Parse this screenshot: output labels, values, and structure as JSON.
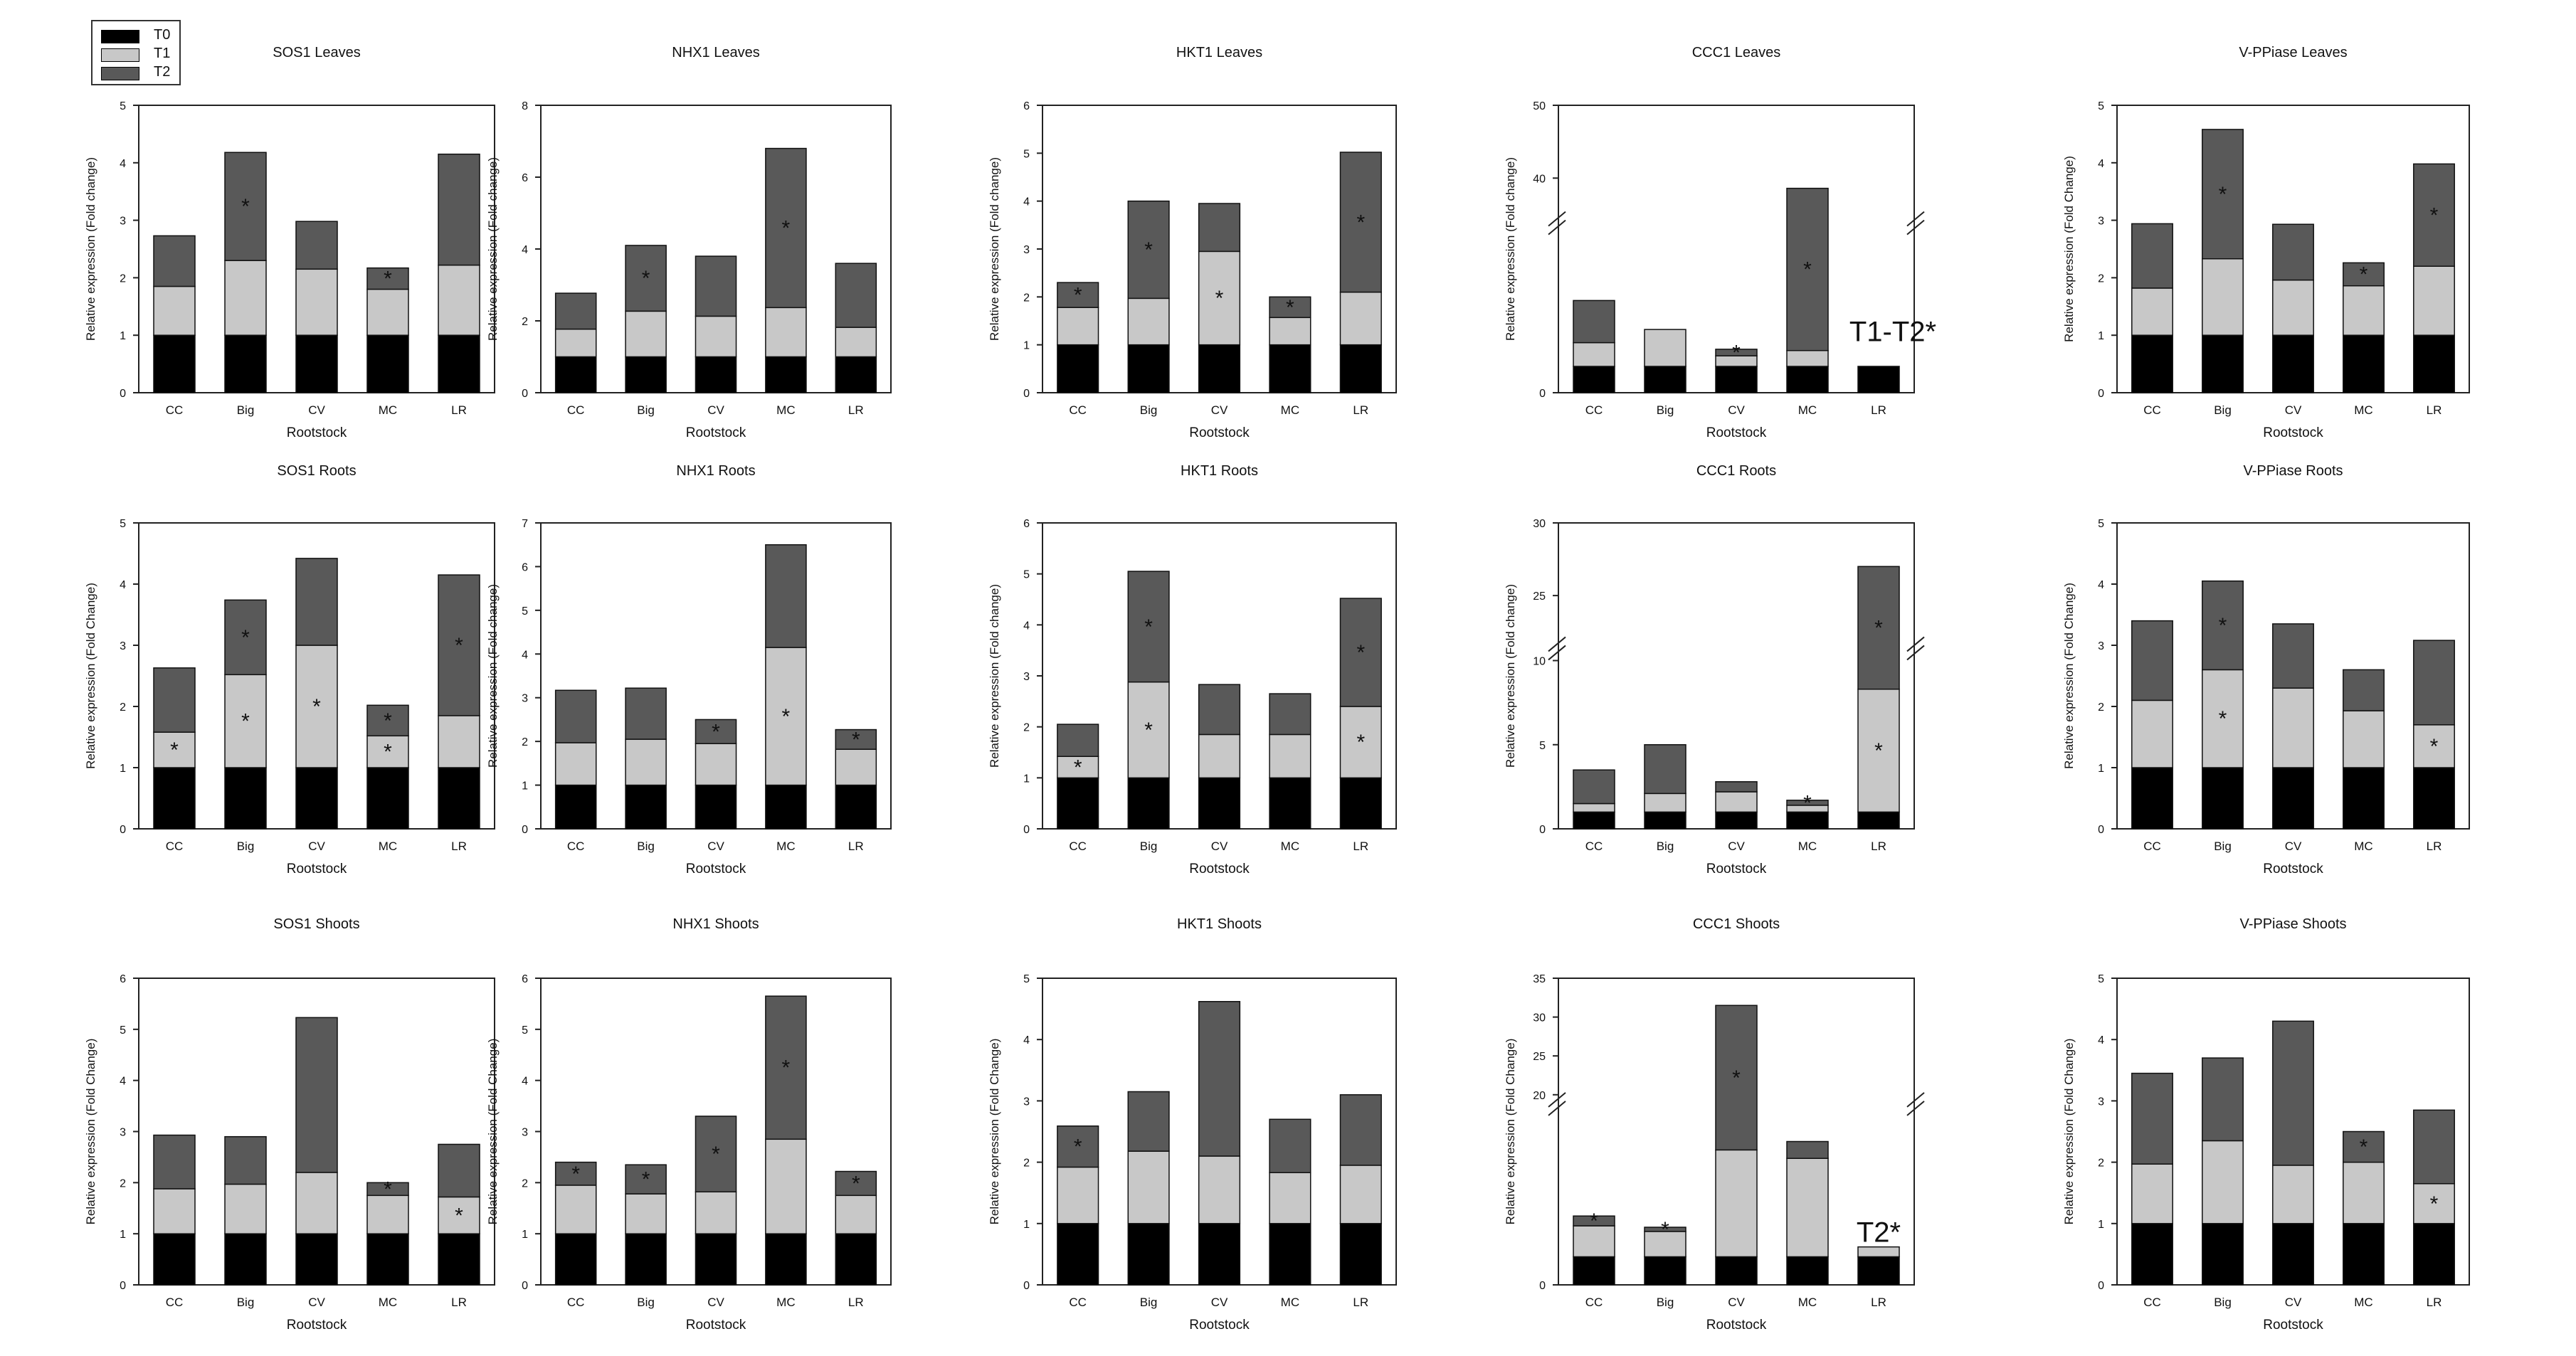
{
  "legend": {
    "t0": {
      "label": "T0",
      "color": "#000000"
    },
    "t1": {
      "label": "T1",
      "color": "#c8c8c8"
    },
    "t2": {
      "label": "T2",
      "color": "#595959"
    }
  },
  "chart_data": [
    {
      "type": "bar",
      "stacked": true,
      "title": "SOS1 Leaves",
      "xlabel": "Rootstock",
      "ylabel": "Relative expression (Fold change)",
      "categories": [
        "CC",
        "Big",
        "CV",
        "MC",
        "LR"
      ],
      "ylim": [
        0,
        5
      ],
      "yticks": [
        0,
        1,
        2,
        3,
        4,
        5
      ],
      "series": [
        {
          "name": "T0",
          "values": [
            1,
            1,
            1,
            1,
            1
          ]
        },
        {
          "name": "T1",
          "values": [
            0.85,
            1.3,
            1.15,
            0.8,
            1.22
          ]
        },
        {
          "name": "T2",
          "values": [
            0.88,
            1.88,
            0.83,
            0.37,
            1.93
          ]
        }
      ],
      "stars": [
        {
          "category": "Big",
          "series": "T2"
        },
        {
          "category": "MC",
          "series": "T2"
        }
      ]
    },
    {
      "type": "bar",
      "stacked": true,
      "title": "NHX1 Leaves",
      "xlabel": "Rootstock",
      "ylabel": "Relative expression (Fold change)",
      "categories": [
        "CC",
        "Big",
        "CV",
        "MC",
        "LR"
      ],
      "ylim": [
        0,
        8
      ],
      "yticks": [
        0,
        2,
        4,
        6,
        8
      ],
      "series": [
        {
          "name": "T0",
          "values": [
            1,
            1,
            1,
            1,
            1
          ]
        },
        {
          "name": "T1",
          "values": [
            0.77,
            1.27,
            1.13,
            1.37,
            0.82
          ]
        },
        {
          "name": "T2",
          "values": [
            1.0,
            1.83,
            1.67,
            4.43,
            1.78
          ]
        }
      ],
      "stars": [
        {
          "category": "Big",
          "series": "T2"
        },
        {
          "category": "MC",
          "series": "T2"
        }
      ]
    },
    {
      "type": "bar",
      "stacked": true,
      "title": "HKT1 Leaves",
      "xlabel": "Rootstock",
      "ylabel": "Relative expression (Fold change)",
      "categories": [
        "CC",
        "Big",
        "CV",
        "MC",
        "LR"
      ],
      "ylim": [
        0,
        6
      ],
      "yticks": [
        0,
        1,
        2,
        3,
        4,
        5,
        6
      ],
      "series": [
        {
          "name": "T0",
          "values": [
            1,
            1,
            1,
            1,
            1
          ]
        },
        {
          "name": "T1",
          "values": [
            0.78,
            0.97,
            1.95,
            0.57,
            1.1
          ]
        },
        {
          "name": "T2",
          "values": [
            0.52,
            2.03,
            1.0,
            0.43,
            2.92
          ]
        }
      ],
      "stars": [
        {
          "category": "CC",
          "series": "T2"
        },
        {
          "category": "Big",
          "series": "T2"
        },
        {
          "category": "CV",
          "series": "T1"
        },
        {
          "category": "MC",
          "series": "T2"
        },
        {
          "category": "LR",
          "series": "T2"
        }
      ]
    },
    {
      "type": "bar",
      "stacked": true,
      "broken_axis": true,
      "title": "CCC1 Leaves",
      "xlabel": "Rootstock",
      "ylabel": "Relative expression (Fold change)",
      "categories": [
        "CC",
        "Big",
        "CV",
        "MC",
        "LR"
      ],
      "ylim": [
        0,
        50
      ],
      "yticks": [
        0,
        40,
        50
      ],
      "series": [
        {
          "name": "T0",
          "values": [
            1,
            1,
            1,
            1,
            1
          ]
        },
        {
          "name": "T1",
          "values": [
            0.9,
            1.4,
            0.4,
            0.6,
            null
          ]
        },
        {
          "name": "T2",
          "values": [
            1.6,
            null,
            0.25,
            37.0,
            null
          ]
        }
      ],
      "stars": [
        {
          "category": "CV",
          "series": "T2"
        },
        {
          "category": "MC",
          "series": "T2"
        }
      ],
      "annotation": "T1-T2*"
    },
    {
      "type": "bar",
      "stacked": true,
      "title": "V-PPiase Leaves",
      "xlabel": "Rootstock",
      "ylabel": "Relative expression (Fold Change)",
      "categories": [
        "CC",
        "Big",
        "CV",
        "MC",
        "LR"
      ],
      "ylim": [
        0,
        5
      ],
      "yticks": [
        0,
        1,
        2,
        3,
        4,
        5
      ],
      "series": [
        {
          "name": "T0",
          "values": [
            1,
            1,
            1,
            1,
            1
          ]
        },
        {
          "name": "T1",
          "values": [
            0.82,
            1.33,
            0.96,
            0.86,
            1.2
          ]
        },
        {
          "name": "T2",
          "values": [
            1.12,
            2.25,
            0.97,
            0.4,
            1.78
          ]
        }
      ],
      "stars": [
        {
          "category": "Big",
          "series": "T2"
        },
        {
          "category": "MC",
          "series": "T2"
        },
        {
          "category": "LR",
          "series": "T2"
        }
      ]
    },
    {
      "type": "bar",
      "stacked": true,
      "title": "SOS1 Roots",
      "xlabel": "Rootstock",
      "ylabel": "Relative expression (Fold Change)",
      "categories": [
        "CC",
        "Big",
        "CV",
        "MC",
        "LR"
      ],
      "ylim": [
        0,
        5
      ],
      "yticks": [
        0,
        1,
        2,
        3,
        4,
        5
      ],
      "series": [
        {
          "name": "T0",
          "values": [
            1,
            1,
            1,
            1,
            1
          ]
        },
        {
          "name": "T1",
          "values": [
            0.58,
            1.52,
            2.0,
            0.52,
            0.85
          ]
        },
        {
          "name": "T2",
          "values": [
            1.05,
            1.22,
            1.42,
            0.5,
            2.3
          ]
        }
      ],
      "stars": [
        {
          "category": "CC",
          "series": "T1"
        },
        {
          "category": "Big",
          "series": "T1"
        },
        {
          "category": "Big",
          "series": "T2"
        },
        {
          "category": "CV",
          "series": "T1"
        },
        {
          "category": "MC",
          "series": "T1"
        },
        {
          "category": "MC",
          "series": "T2"
        },
        {
          "category": "LR",
          "series": "T2"
        }
      ]
    },
    {
      "type": "bar",
      "stacked": true,
      "title": "NHX1 Roots",
      "xlabel": "Rootstock",
      "ylabel": "Relative expression (Fold change)",
      "categories": [
        "CC",
        "Big",
        "CV",
        "MC",
        "LR"
      ],
      "ylim": [
        0,
        7
      ],
      "yticks": [
        0,
        1,
        2,
        3,
        4,
        5,
        6,
        7
      ],
      "series": [
        {
          "name": "T0",
          "values": [
            1,
            1,
            1,
            1,
            1
          ]
        },
        {
          "name": "T1",
          "values": [
            0.97,
            1.05,
            0.95,
            3.15,
            0.82
          ]
        },
        {
          "name": "T2",
          "values": [
            1.2,
            1.17,
            0.55,
            2.35,
            0.45
          ]
        }
      ],
      "stars": [
        {
          "category": "CV",
          "series": "T2"
        },
        {
          "category": "MC",
          "series": "T1"
        },
        {
          "category": "LR",
          "series": "T2"
        }
      ]
    },
    {
      "type": "bar",
      "stacked": true,
      "title": "HKT1 Roots",
      "xlabel": "Rootstock",
      "ylabel": "Relative expression (Fold change)",
      "categories": [
        "CC",
        "Big",
        "CV",
        "MC",
        "LR"
      ],
      "ylim": [
        0,
        6
      ],
      "yticks": [
        0,
        1,
        2,
        3,
        4,
        5,
        6
      ],
      "series": [
        {
          "name": "T0",
          "values": [
            1,
            1,
            1,
            1,
            1
          ]
        },
        {
          "name": "T1",
          "values": [
            0.42,
            1.88,
            0.85,
            0.85,
            1.4
          ]
        },
        {
          "name": "T2",
          "values": [
            0.63,
            2.17,
            0.98,
            0.8,
            2.12
          ]
        }
      ],
      "stars": [
        {
          "category": "CC",
          "series": "T1"
        },
        {
          "category": "Big",
          "series": "T1"
        },
        {
          "category": "Big",
          "series": "T2"
        },
        {
          "category": "LR",
          "series": "T1"
        },
        {
          "category": "LR",
          "series": "T2"
        }
      ]
    },
    {
      "type": "bar",
      "stacked": true,
      "broken_axis": true,
      "title": "CCC1 Roots",
      "xlabel": "Rootstock",
      "ylabel": "Relative expression (Fold change)",
      "categories": [
        "CC",
        "Big",
        "CV",
        "MC",
        "LR"
      ],
      "ylim": [
        0,
        30
      ],
      "yticks": [
        0,
        5,
        10,
        25,
        30
      ],
      "series": [
        {
          "name": "T0",
          "values": [
            1,
            1,
            1,
            1,
            1
          ]
        },
        {
          "name": "T1",
          "values": [
            0.5,
            1.1,
            1.2,
            0.4,
            7.3
          ]
        },
        {
          "name": "T2",
          "values": [
            2.0,
            2.9,
            0.6,
            0.3,
            18.7
          ]
        }
      ],
      "stars": [
        {
          "category": "MC",
          "series": "T2"
        },
        {
          "category": "LR",
          "series": "T1"
        },
        {
          "category": "LR",
          "series": "T2"
        }
      ]
    },
    {
      "type": "bar",
      "stacked": true,
      "title": "V-PPiase Roots",
      "xlabel": "Rootstock",
      "ylabel": "Relative expression (Fold Change)",
      "categories": [
        "CC",
        "Big",
        "CV",
        "MC",
        "LR"
      ],
      "ylim": [
        0,
        5
      ],
      "yticks": [
        0,
        1,
        2,
        3,
        4,
        5
      ],
      "series": [
        {
          "name": "T0",
          "values": [
            1,
            1,
            1,
            1,
            1
          ]
        },
        {
          "name": "T1",
          "values": [
            1.1,
            1.6,
            1.3,
            0.93,
            0.7
          ]
        },
        {
          "name": "T2",
          "values": [
            1.3,
            1.45,
            1.05,
            0.67,
            1.38
          ]
        }
      ],
      "stars": [
        {
          "category": "Big",
          "series": "T1"
        },
        {
          "category": "Big",
          "series": "T2"
        },
        {
          "category": "LR",
          "series": "T1"
        }
      ]
    },
    {
      "type": "bar",
      "stacked": true,
      "title": "SOS1 Shoots",
      "xlabel": "Rootstock",
      "ylabel": "Relative expression (Fold Change)",
      "categories": [
        "CC",
        "Big",
        "CV",
        "MC",
        "LR"
      ],
      "ylim": [
        0,
        6
      ],
      "yticks": [
        0,
        1,
        2,
        3,
        4,
        5,
        6
      ],
      "series": [
        {
          "name": "T0",
          "values": [
            1,
            1,
            1,
            1,
            1
          ]
        },
        {
          "name": "T1",
          "values": [
            0.88,
            0.97,
            1.2,
            0.75,
            0.72
          ]
        },
        {
          "name": "T2",
          "values": [
            1.05,
            0.93,
            3.03,
            0.25,
            1.03
          ]
        }
      ],
      "stars": [
        {
          "category": "MC",
          "series": "T2"
        },
        {
          "category": "LR",
          "series": "T1"
        }
      ]
    },
    {
      "type": "bar",
      "stacked": true,
      "title": "NHX1 Shoots",
      "xlabel": "Rootstock",
      "ylabel": "Relative expression (Fold Change)",
      "categories": [
        "CC",
        "Big",
        "CV",
        "MC",
        "LR"
      ],
      "ylim": [
        0,
        6
      ],
      "yticks": [
        0,
        1,
        2,
        3,
        4,
        5,
        6
      ],
      "series": [
        {
          "name": "T0",
          "values": [
            1,
            1,
            1,
            1,
            1
          ]
        },
        {
          "name": "T1",
          "values": [
            0.95,
            0.78,
            0.82,
            1.85,
            0.75
          ]
        },
        {
          "name": "T2",
          "values": [
            0.45,
            0.57,
            1.48,
            2.8,
            0.47
          ]
        }
      ],
      "stars": [
        {
          "category": "CC",
          "series": "T2"
        },
        {
          "category": "Big",
          "series": "T2"
        },
        {
          "category": "CV",
          "series": "T2"
        },
        {
          "category": "MC",
          "series": "T2"
        },
        {
          "category": "LR",
          "series": "T2"
        }
      ]
    },
    {
      "type": "bar",
      "stacked": true,
      "title": "HKT1 Shoots",
      "xlabel": "Rootstock",
      "ylabel": "Relative expression (Fold Change)",
      "categories": [
        "CC",
        "Big",
        "CV",
        "MC",
        "LR"
      ],
      "ylim": [
        0,
        5
      ],
      "yticks": [
        0,
        1,
        2,
        3,
        4,
        5
      ],
      "series": [
        {
          "name": "T0",
          "values": [
            1,
            1,
            1,
            1,
            1
          ]
        },
        {
          "name": "T1",
          "values": [
            0.92,
            1.18,
            1.1,
            0.83,
            0.95
          ]
        },
        {
          "name": "T2",
          "values": [
            0.67,
            0.97,
            2.52,
            0.87,
            1.15
          ]
        }
      ],
      "stars": [
        {
          "category": "CC",
          "series": "T2"
        }
      ]
    },
    {
      "type": "bar",
      "stacked": true,
      "broken_axis": true,
      "title": "CCC1 Shoots",
      "xlabel": "Rootstock",
      "ylabel": "Relative expression (Fold Change)",
      "categories": [
        "CC",
        "Big",
        "CV",
        "MC",
        "LR"
      ],
      "ylim": [
        0,
        35
      ],
      "yticks": [
        0,
        20,
        25,
        30,
        35
      ],
      "series": [
        {
          "name": "T0",
          "values": [
            1,
            1,
            1,
            1,
            1
          ]
        },
        {
          "name": "T1",
          "values": [
            1.1,
            0.9,
            3.8,
            3.5,
            0.35
          ]
        },
        {
          "name": "T2",
          "values": [
            0.35,
            0.15,
            26.7,
            0.6,
            null
          ]
        }
      ],
      "stars": [
        {
          "category": "CC",
          "series": "T2"
        },
        {
          "category": "Big",
          "series": "T2"
        },
        {
          "category": "CV",
          "series": "T2"
        }
      ],
      "annotation": "T2*"
    },
    {
      "type": "bar",
      "stacked": true,
      "title": "V-PPiase Shoots",
      "xlabel": "Rootstock",
      "ylabel": "Relative expression (Fold Change)",
      "categories": [
        "CC",
        "Big",
        "CV",
        "MC",
        "LR"
      ],
      "ylim": [
        0,
        5
      ],
      "yticks": [
        0,
        1,
        2,
        3,
        4,
        5
      ],
      "series": [
        {
          "name": "T0",
          "values": [
            1,
            1,
            1,
            1,
            1
          ]
        },
        {
          "name": "T1",
          "values": [
            0.97,
            1.35,
            0.95,
            1.0,
            0.65
          ]
        },
        {
          "name": "T2",
          "values": [
            1.48,
            1.35,
            2.35,
            0.5,
            1.2
          ]
        }
      ],
      "stars": [
        {
          "category": "MC",
          "series": "T2"
        },
        {
          "category": "LR",
          "series": "T1"
        }
      ]
    }
  ]
}
